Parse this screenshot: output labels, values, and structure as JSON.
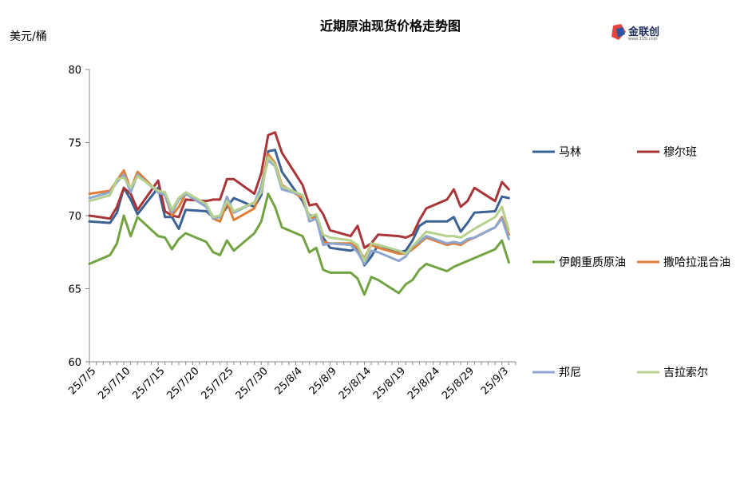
{
  "chart_data": {
    "type": "line",
    "title": "近期原油现货价格走势图",
    "ylabel": "美元/桶",
    "ylim": [
      60,
      80
    ],
    "yticks": [
      60,
      65,
      70,
      75,
      80
    ],
    "xtick_labels": [
      "25/7/5",
      "25/7/10",
      "25/7/15",
      "25/7/20",
      "25/7/25",
      "25/7/30",
      "25/8/4",
      "25/8/9",
      "25/8/14",
      "25/8/19",
      "25/8/24",
      "25/8/29",
      "25/9/3"
    ],
    "xtick_days": [
      5,
      10,
      15,
      20,
      25,
      30,
      35,
      40,
      45,
      50,
      55,
      60,
      65
    ],
    "x_days": [
      4,
      7,
      8,
      9,
      10,
      11,
      14,
      15,
      16,
      17,
      18,
      21,
      22,
      23,
      24,
      25,
      28,
      29,
      30,
      31,
      32,
      35,
      36,
      37,
      38,
      39,
      42,
      43,
      44,
      45,
      46,
      49,
      50,
      51,
      52,
      53,
      56,
      57,
      58,
      59,
      60,
      63,
      64,
      65
    ],
    "series": [
      {
        "name": "马林",
        "color": "#3b6294",
        "values": [
          69.6,
          69.5,
          70.2,
          71.9,
          71.1,
          70.1,
          71.9,
          69.9,
          69.9,
          69.1,
          70.4,
          70.3,
          69.9,
          69.9,
          70.6,
          71.2,
          70.6,
          71.4,
          74.4,
          74.5,
          73.0,
          71.0,
          70.0,
          70.0,
          68.5,
          67.8,
          67.6,
          67.8,
          66.6,
          67.2,
          68.0,
          67.5,
          67.6,
          68.3,
          69.3,
          69.6,
          69.6,
          69.9,
          68.9,
          69.5,
          70.2,
          70.3,
          71.3,
          71.2
        ]
      },
      {
        "name": "穆尔班",
        "color": "#a83537",
        "values": [
          70.0,
          69.8,
          70.6,
          71.9,
          71.5,
          70.4,
          72.4,
          70.3,
          70.0,
          69.9,
          71.1,
          71.0,
          71.1,
          71.1,
          72.5,
          72.5,
          71.5,
          72.9,
          75.5,
          75.7,
          74.3,
          72.1,
          70.7,
          70.8,
          70.1,
          69.0,
          68.6,
          69.3,
          67.8,
          68.1,
          68.7,
          68.6,
          68.5,
          68.7,
          69.7,
          70.5,
          71.1,
          71.8,
          70.6,
          71.0,
          71.9,
          71.0,
          72.3,
          71.8
        ]
      },
      {
        "name": "伊朗重质原油",
        "color": "#72a342",
        "values": [
          66.7,
          67.3,
          68.1,
          70.0,
          68.6,
          69.9,
          68.6,
          68.5,
          67.7,
          68.4,
          68.8,
          68.2,
          67.5,
          67.3,
          68.3,
          67.6,
          68.8,
          69.6,
          71.5,
          70.6,
          69.2,
          68.6,
          67.5,
          67.8,
          66.3,
          66.1,
          66.1,
          65.7,
          64.6,
          65.8,
          65.6,
          64.7,
          65.3,
          65.6,
          66.3,
          66.7,
          66.2,
          66.5,
          66.7,
          66.9,
          67.1,
          67.7,
          68.3,
          66.8
        ]
      },
      {
        "name": "撒哈拉混合油",
        "color": "#e07e37",
        "values": [
          71.5,
          71.7,
          72.4,
          73.1,
          71.8,
          73.0,
          71.6,
          71.4,
          70.0,
          70.6,
          71.5,
          70.7,
          69.8,
          69.6,
          70.9,
          69.7,
          70.5,
          72.0,
          74.2,
          73.6,
          72.1,
          71.2,
          69.9,
          69.8,
          68.2,
          68.1,
          68.1,
          67.8,
          67.1,
          68.0,
          67.8,
          67.4,
          67.4,
          67.7,
          68.1,
          68.5,
          68.0,
          68.1,
          68.0,
          68.3,
          68.5,
          69.2,
          69.9,
          68.7
        ]
      },
      {
        "name": "邦尼",
        "color": "#8da6cf",
        "values": [
          71.2,
          71.6,
          72.3,
          72.8,
          71.6,
          72.8,
          71.6,
          71.4,
          70.2,
          71.1,
          71.5,
          70.6,
          69.8,
          69.9,
          71.3,
          70.2,
          70.9,
          72.0,
          73.8,
          73.4,
          71.8,
          71.4,
          69.6,
          69.8,
          68.0,
          68.1,
          68.0,
          67.5,
          66.7,
          67.6,
          67.5,
          66.9,
          67.2,
          67.9,
          68.2,
          68.6,
          68.1,
          68.2,
          68.1,
          68.4,
          68.5,
          69.2,
          69.8,
          68.4
        ]
      },
      {
        "name": "吉拉索尔",
        "color": "#b5d18d",
        "values": [
          71.0,
          71.4,
          72.5,
          72.6,
          71.9,
          72.7,
          71.7,
          71.6,
          70.4,
          71.2,
          71.6,
          70.8,
          69.9,
          70.0,
          71.0,
          70.3,
          70.9,
          71.6,
          74.0,
          73.5,
          72.0,
          71.4,
          69.9,
          70.1,
          68.7,
          68.5,
          68.3,
          68.0,
          66.9,
          68.1,
          68.0,
          67.6,
          67.4,
          67.9,
          68.4,
          68.9,
          68.6,
          68.6,
          68.5,
          68.8,
          69.1,
          69.9,
          70.6,
          69.0
        ]
      }
    ]
  }
}
